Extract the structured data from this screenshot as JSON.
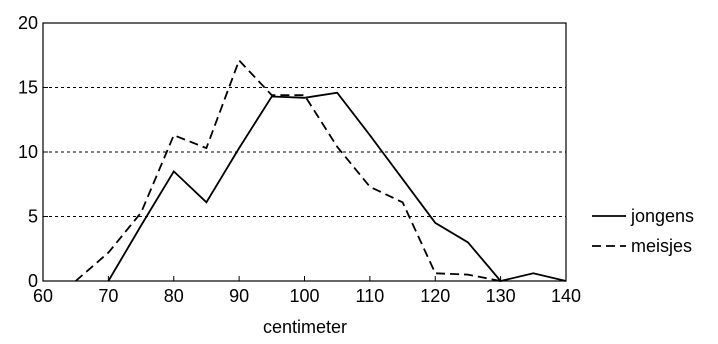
{
  "chart_data": {
    "type": "line",
    "title": "",
    "xlabel": "centimeter",
    "ylabel": "",
    "xlim": [
      60,
      140
    ],
    "ylim": [
      0,
      20
    ],
    "x_ticks": [
      60,
      70,
      80,
      90,
      100,
      110,
      120,
      130,
      140
    ],
    "y_ticks": [
      0,
      5,
      10,
      15,
      20
    ],
    "grid": "horizontal dashed at 5, 10, 15",
    "legend_position": "right",
    "series": [
      {
        "name": "jongens",
        "style": "solid",
        "color": "#000000",
        "x": [
          70,
          75,
          80,
          85,
          90,
          95,
          100,
          105,
          110,
          115,
          120,
          125,
          130,
          135,
          140
        ],
        "y": [
          0,
          4.3,
          8.5,
          6.1,
          10.3,
          14.3,
          14.2,
          14.6,
          11.3,
          7.9,
          4.5,
          3.0,
          0,
          0.6,
          0
        ]
      },
      {
        "name": "meisjes",
        "style": "dashed",
        "color": "#000000",
        "x": [
          65,
          70,
          75,
          80,
          85,
          90,
          95,
          100,
          105,
          110,
          115,
          120,
          125,
          130
        ],
        "y": [
          0,
          2.2,
          5.3,
          11.3,
          10.3,
          17.1,
          14.4,
          14.4,
          10.4,
          7.3,
          6.1,
          0.6,
          0.5,
          0
        ]
      }
    ]
  }
}
